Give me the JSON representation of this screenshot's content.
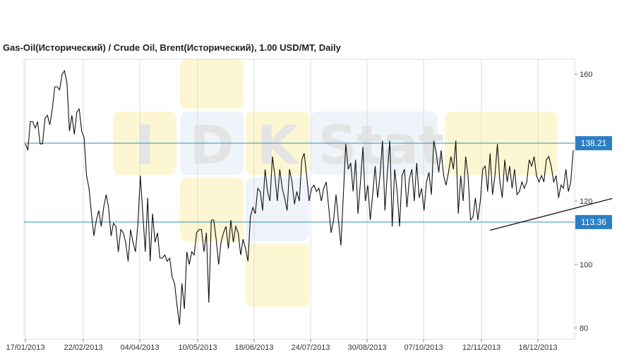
{
  "title": "Gas-Oil(Исторический) / Crude Oil, Brent(Исторический), 1.00 USD/MT, Daily",
  "watermark": {
    "letters": [
      "I",
      "D",
      "K",
      "Stat"
    ]
  },
  "colors": {
    "price_line": "#111111",
    "level_line": "#2a8fb0",
    "level_badge": "#2a7fc4",
    "trend_line": "#111111",
    "grid": "#dcdcdc",
    "watermark_yellow": "#fdf6d2",
    "watermark_blue": "#eef4fa"
  },
  "chart_data": {
    "type": "line",
    "title": "Gas-Oil(Исторический) / Crude Oil, Brent(Исторический), 1.00 USD/MT, Daily",
    "xlabel": "",
    "ylabel": "",
    "ylim": [
      78,
      166
    ],
    "x_tick_labels": [
      "17/01/2013",
      "22/02/2013",
      "04/04/2013",
      "10/05/2013",
      "18/06/2013",
      "24/07/2013",
      "30/08/2013",
      "07/10/2013",
      "12/11/2013",
      "18/12/2013"
    ],
    "y_ticks": [
      80,
      100,
      120,
      160
    ],
    "grid": true,
    "series": [
      {
        "values": [
          138,
          136,
          145,
          145,
          143,
          145,
          138,
          138,
          146,
          147,
          144,
          149,
          156,
          156,
          155,
          160,
          161,
          157,
          142,
          147,
          141,
          148,
          149,
          142,
          140,
          128,
          124,
          116,
          109,
          114,
          117,
          112,
          118,
          122,
          118,
          109,
          113,
          112,
          104,
          111,
          110,
          107,
          101,
          111,
          107,
          104,
          113,
          128,
          116,
          104,
          121,
          101,
          116,
          107,
          110,
          102,
          102,
          103,
          101,
          102,
          96,
          94,
          87,
          81,
          94,
          86,
          104,
          100,
          104,
          103,
          110,
          111,
          111,
          104,
          110,
          88,
          114,
          114,
          108,
          100,
          107,
          110,
          112,
          105,
          114,
          107,
          112,
          110,
          103,
          108,
          105,
          101,
          115,
          118,
          116,
          124,
          123,
          117,
          130,
          123,
          120,
          134,
          128,
          120,
          130,
          124,
          121,
          117,
          130,
          126,
          119,
          123,
          120,
          133,
          135,
          128,
          120,
          124,
          125,
          123,
          124,
          120,
          124,
          126,
          118,
          110,
          114,
          122,
          114,
          106,
          122,
          138,
          130,
          132,
          123,
          133,
          116,
          126,
          137,
          120,
          125,
          114,
          122,
          131,
          121,
          128,
          139,
          117,
          129,
          139,
          112,
          130,
          123,
          112,
          128,
          130,
          118,
          127,
          130,
          120,
          132,
          121,
          124,
          117,
          126,
          129,
          122,
          139,
          135,
          129,
          136,
          128,
          125,
          129,
          134,
          130,
          139,
          116,
          128,
          120,
          134,
          128,
          114,
          115,
          121,
          114,
          120,
          130,
          131,
          123,
          135,
          122,
          128,
          138,
          126,
          121,
          133,
          126,
          131,
          124,
          130,
          122,
          123,
          126,
          124,
          126,
          133,
          131,
          134,
          128,
          126,
          128,
          126,
          133,
          134,
          131,
          126,
          128,
          121,
          125,
          124,
          130,
          123,
          126,
          136
        ]
      }
    ],
    "horizontal_levels": [
      {
        "label": "138.21",
        "value": 138.21
      },
      {
        "label": "113.36",
        "value": 113.36
      }
    ],
    "trend_line": {
      "start": {
        "index": 190,
        "value": 110.8
      },
      "end": {
        "index": 240,
        "value": 120.8
      }
    },
    "legend": "none"
  }
}
